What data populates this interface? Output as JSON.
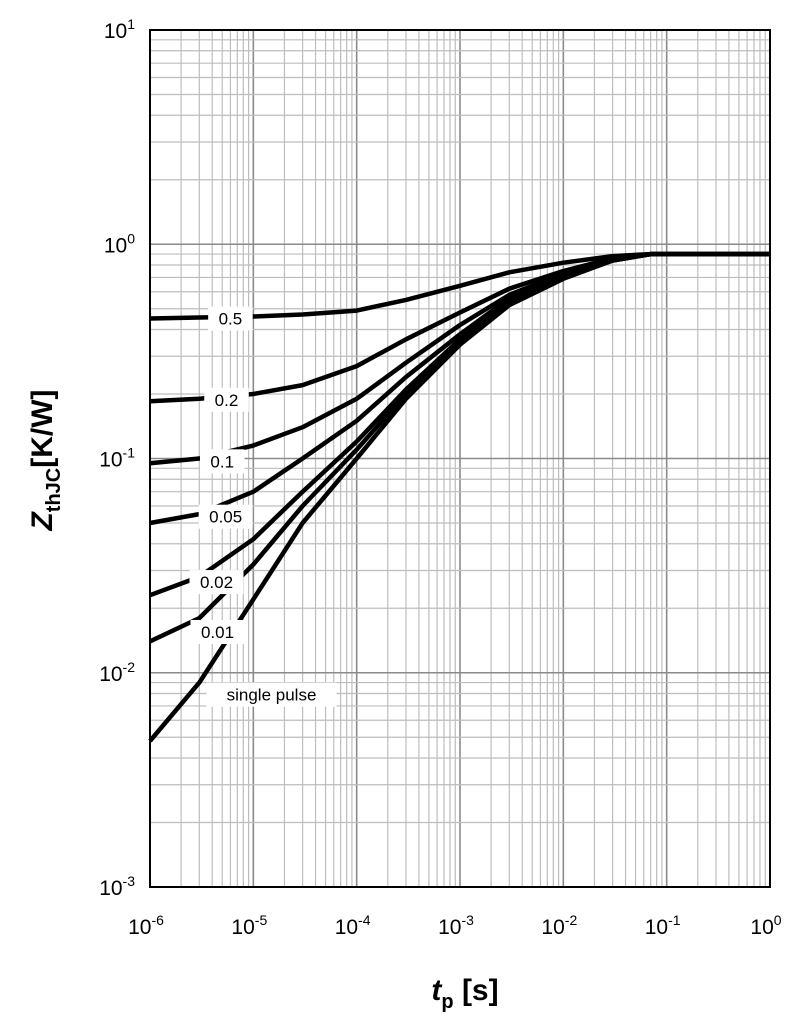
{
  "chart_data": {
    "type": "line",
    "x_scale": "log",
    "y_scale": "log",
    "xlim": [
      1e-06,
      1
    ],
    "ylim": [
      0.001,
      10
    ],
    "grid": true,
    "x_ticks": [
      {
        "base": "10",
        "exp": "-6"
      },
      {
        "base": "10",
        "exp": "-5"
      },
      {
        "base": "10",
        "exp": "-4"
      },
      {
        "base": "10",
        "exp": "-3"
      },
      {
        "base": "10",
        "exp": "-2"
      },
      {
        "base": "10",
        "exp": "-1"
      },
      {
        "base": "10",
        "exp": "0"
      }
    ],
    "y_ticks": [
      {
        "base": "10",
        "exp": "1"
      },
      {
        "base": "10",
        "exp": "0"
      },
      {
        "base": "10",
        "exp": "-1"
      },
      {
        "base": "10",
        "exp": "-2"
      },
      {
        "base": "10",
        "exp": "-3"
      }
    ],
    "xlabel": {
      "main": "t",
      "sub": "p",
      "unit": " [s]"
    },
    "ylabel": {
      "main": "Z",
      "sub": "thJC",
      "unit": "[K/W]"
    },
    "series": [
      {
        "name": "0.5",
        "points": [
          [
            1e-06,
            0.45
          ],
          [
            3e-06,
            0.455
          ],
          [
            1e-05,
            0.46
          ],
          [
            3e-05,
            0.47
          ],
          [
            0.0001,
            0.49
          ],
          [
            0.0003,
            0.55
          ],
          [
            0.001,
            0.64
          ],
          [
            0.003,
            0.74
          ],
          [
            0.01,
            0.82
          ],
          [
            0.03,
            0.88
          ],
          [
            0.07,
            0.9
          ],
          [
            1,
            0.9
          ]
        ]
      },
      {
        "name": "0.2",
        "points": [
          [
            1e-06,
            0.185
          ],
          [
            3e-06,
            0.19
          ],
          [
            1e-05,
            0.2
          ],
          [
            3e-05,
            0.22
          ],
          [
            0.0001,
            0.27
          ],
          [
            0.0003,
            0.36
          ],
          [
            0.001,
            0.48
          ],
          [
            0.003,
            0.62
          ],
          [
            0.01,
            0.75
          ],
          [
            0.03,
            0.86
          ],
          [
            0.07,
            0.9
          ],
          [
            1,
            0.9
          ]
        ]
      },
      {
        "name": "0.1",
        "points": [
          [
            1e-06,
            0.095
          ],
          [
            3e-06,
            0.1
          ],
          [
            1e-05,
            0.115
          ],
          [
            3e-05,
            0.14
          ],
          [
            0.0001,
            0.19
          ],
          [
            0.0003,
            0.28
          ],
          [
            0.001,
            0.42
          ],
          [
            0.003,
            0.58
          ],
          [
            0.01,
            0.73
          ],
          [
            0.03,
            0.85
          ],
          [
            0.07,
            0.9
          ],
          [
            1,
            0.9
          ]
        ]
      },
      {
        "name": "0.05",
        "points": [
          [
            1e-06,
            0.05
          ],
          [
            3e-06,
            0.055
          ],
          [
            1e-05,
            0.07
          ],
          [
            3e-05,
            0.1
          ],
          [
            0.0001,
            0.15
          ],
          [
            0.0003,
            0.24
          ],
          [
            0.001,
            0.38
          ],
          [
            0.003,
            0.56
          ],
          [
            0.01,
            0.72
          ],
          [
            0.03,
            0.85
          ],
          [
            0.07,
            0.9
          ],
          [
            1,
            0.9
          ]
        ]
      },
      {
        "name": "0.02",
        "points": [
          [
            1e-06,
            0.023
          ],
          [
            3e-06,
            0.028
          ],
          [
            1e-05,
            0.042
          ],
          [
            3e-05,
            0.07
          ],
          [
            0.0001,
            0.12
          ],
          [
            0.0003,
            0.21
          ],
          [
            0.001,
            0.36
          ],
          [
            0.003,
            0.54
          ],
          [
            0.01,
            0.71
          ],
          [
            0.03,
            0.84
          ],
          [
            0.07,
            0.9
          ],
          [
            1,
            0.9
          ]
        ]
      },
      {
        "name": "0.01",
        "points": [
          [
            1e-06,
            0.014
          ],
          [
            3e-06,
            0.018
          ],
          [
            1e-05,
            0.032
          ],
          [
            3e-05,
            0.06
          ],
          [
            0.0001,
            0.11
          ],
          [
            0.0003,
            0.2
          ],
          [
            0.001,
            0.35
          ],
          [
            0.003,
            0.53
          ],
          [
            0.01,
            0.7
          ],
          [
            0.03,
            0.84
          ],
          [
            0.07,
            0.9
          ],
          [
            1,
            0.9
          ]
        ]
      },
      {
        "name": "single pulse",
        "points": [
          [
            1e-06,
            0.0048
          ],
          [
            3e-06,
            0.009
          ],
          [
            1e-05,
            0.022
          ],
          [
            3e-05,
            0.05
          ],
          [
            0.0001,
            0.1
          ],
          [
            0.0003,
            0.19
          ],
          [
            0.001,
            0.34
          ],
          [
            0.003,
            0.52
          ],
          [
            0.01,
            0.69
          ],
          [
            0.03,
            0.84
          ],
          [
            0.07,
            0.9
          ],
          [
            1,
            0.9
          ]
        ]
      }
    ],
    "curve_labels": [
      {
        "text": "0.5",
        "x": 6e-06,
        "y": 0.45
      },
      {
        "text": "0.2",
        "x": 5.5e-06,
        "y": 0.188
      },
      {
        "text": "0.1",
        "x": 5e-06,
        "y": 0.097
      },
      {
        "text": "0.05",
        "x": 5.4e-06,
        "y": 0.0535
      },
      {
        "text": "0.02",
        "x": 4.4e-06,
        "y": 0.0265
      },
      {
        "text": "0.01",
        "x": 4.5e-06,
        "y": 0.0155
      },
      {
        "text": "single pulse",
        "x": 1.5e-05,
        "y": 0.0079
      }
    ]
  }
}
